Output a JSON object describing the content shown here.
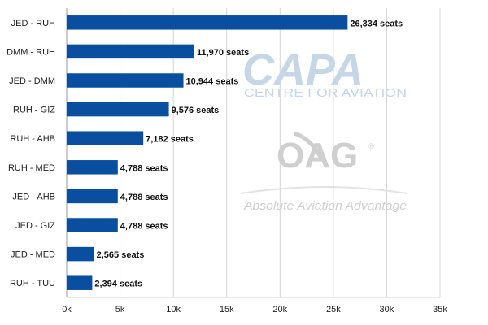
{
  "chart_data": {
    "type": "bar",
    "orientation": "horizontal",
    "categories": [
      "JED - RUH",
      "DMM - RUH",
      "JED - DMM",
      "RUH - GIZ",
      "RUH - AHB",
      "RUH - MED",
      "JED - AHB",
      "JED - GIZ",
      "JED - MED",
      "RUH - TUU"
    ],
    "values": [
      26334,
      11970,
      10944,
      9576,
      7182,
      4788,
      4788,
      4788,
      2565,
      2394
    ],
    "data_labels": [
      "26,334 seats",
      "11,970 seats",
      "10,944 seats",
      "9,576 seats",
      "7,182 seats",
      "4,788 seats",
      "4,788 seats",
      "4,788 seats",
      "2,565 seats",
      "2,394 seats"
    ],
    "xlim": [
      0,
      35000
    ],
    "xticks": [
      0,
      5000,
      10000,
      15000,
      20000,
      25000,
      30000,
      35000
    ],
    "xtick_labels": [
      "0k",
      "5k",
      "10k",
      "15k",
      "20k",
      "25k",
      "30k",
      "35k"
    ],
    "title": "",
    "xlabel": "",
    "ylabel": "",
    "grid": "vertical",
    "bar_color": "#0a4ea0"
  },
  "watermarks": {
    "capa_logo": "CAPA",
    "capa_sub": "CENTRE FOR AVIATION",
    "oag_logo": "OAG",
    "oag_tagline": "Absolute Aviation Advantage",
    "capa_color": "#c5d6e6",
    "oag_color": "#cfcfcf"
  }
}
